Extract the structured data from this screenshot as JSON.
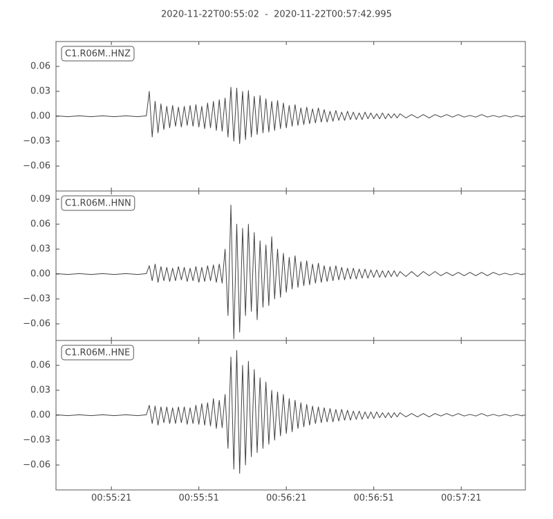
{
  "chart_data": {
    "type": "line",
    "title": "2020-11-22T00:55:02  -  2020-11-22T00:57:42.995",
    "x": [
      "00:55:02",
      "00:55:06",
      "00:55:10",
      "00:55:14",
      "00:55:18",
      "00:55:22",
      "00:55:26",
      "00:55:30",
      "00:55:33",
      "00:55:34",
      "00:55:35",
      "00:55:36",
      "00:55:37",
      "00:55:38",
      "00:55:39",
      "00:55:40",
      "00:55:41",
      "00:55:42",
      "00:55:43",
      "00:55:44",
      "00:55:45",
      "00:55:46",
      "00:55:47",
      "00:55:48",
      "00:55:49",
      "00:55:50",
      "00:55:51",
      "00:55:52",
      "00:55:53",
      "00:55:54",
      "00:55:55",
      "00:55:56",
      "00:55:57",
      "00:55:58",
      "00:55:59",
      "00:56:00",
      "00:56:01",
      "00:56:02",
      "00:56:03",
      "00:56:04",
      "00:56:05",
      "00:56:06",
      "00:56:07",
      "00:56:08",
      "00:56:09",
      "00:56:10",
      "00:56:11",
      "00:56:12",
      "00:56:13",
      "00:56:14",
      "00:56:15",
      "00:56:16",
      "00:56:17",
      "00:56:18",
      "00:56:19",
      "00:56:20",
      "00:56:21",
      "00:56:22",
      "00:56:23",
      "00:56:24",
      "00:56:25",
      "00:56:26",
      "00:56:27",
      "00:56:28",
      "00:56:29",
      "00:56:30",
      "00:56:31",
      "00:56:32",
      "00:56:33",
      "00:56:34",
      "00:56:35",
      "00:56:36",
      "00:56:37",
      "00:56:38",
      "00:56:39",
      "00:56:40",
      "00:56:41",
      "00:56:42",
      "00:56:43",
      "00:56:44",
      "00:56:45",
      "00:56:46",
      "00:56:47",
      "00:56:48",
      "00:56:49",
      "00:56:50",
      "00:56:51",
      "00:56:52",
      "00:56:53",
      "00:56:54",
      "00:56:55",
      "00:56:56",
      "00:56:57",
      "00:56:58",
      "00:56:59",
      "00:57:00",
      "00:57:02",
      "00:57:04",
      "00:57:06",
      "00:57:08",
      "00:57:10",
      "00:57:12",
      "00:57:14",
      "00:57:16",
      "00:57:18",
      "00:57:20",
      "00:57:22",
      "00:57:24",
      "00:57:26",
      "00:57:28",
      "00:57:30",
      "00:57:32",
      "00:57:34",
      "00:57:36",
      "00:57:38",
      "00:57:40",
      "00:57:42"
    ],
    "xlim": [
      "00:55:02",
      "00:57:42.995"
    ],
    "xticks": [
      "00:55:21",
      "00:55:51",
      "00:56:21",
      "00:56:51",
      "00:57:21"
    ],
    "series": [
      {
        "name": "C1.R06M..HNZ",
        "color": "#404040",
        "ylim": [
          -0.09,
          0.09
        ],
        "yticks": [
          {
            "value": -0.06,
            "label": "−0.06"
          },
          {
            "value": -0.03,
            "label": "−0.03"
          },
          {
            "value": 0,
            "label": "0.00"
          },
          0.03,
          0.06
        ],
        "values": [
          0.0005,
          -0.0005,
          0.0005,
          -0.0005,
          0.0005,
          -0.0005,
          0.0005,
          -0.0005,
          0.0005,
          0.03,
          -0.025,
          0.018,
          -0.02,
          0.015,
          -0.016,
          0.012,
          -0.014,
          0.013,
          -0.012,
          0.011,
          -0.013,
          0.012,
          -0.011,
          0.013,
          -0.012,
          0.014,
          -0.013,
          0.012,
          -0.015,
          0.016,
          -0.014,
          0.018,
          -0.017,
          0.02,
          -0.018,
          0.022,
          -0.025,
          0.035,
          -0.03,
          0.034,
          -0.033,
          0.03,
          -0.028,
          0.031,
          -0.025,
          0.024,
          -0.022,
          0.025,
          -0.02,
          0.021,
          -0.019,
          0.018,
          -0.017,
          0.019,
          -0.015,
          0.016,
          -0.014,
          0.013,
          -0.012,
          0.014,
          -0.011,
          0.01,
          -0.01,
          0.011,
          -0.009,
          0.009,
          -0.008,
          0.01,
          -0.007,
          0.008,
          -0.007,
          0.006,
          -0.006,
          0.007,
          -0.005,
          0.005,
          -0.005,
          0.006,
          -0.004,
          0.005,
          -0.004,
          0.004,
          -0.004,
          0.005,
          -0.003,
          0.004,
          -0.003,
          0.003,
          -0.003,
          0.004,
          -0.003,
          0.003,
          -0.002,
          0.003,
          -0.002,
          0.003,
          -0.002,
          0.002,
          -0.002,
          0.002,
          -0.002,
          0.002,
          -0.001,
          0.002,
          -0.001,
          0.002,
          -0.001,
          0.001,
          -0.001,
          0.002,
          -0.001,
          0.001,
          -0.001,
          0.001,
          -0.001,
          0.001,
          -0.001
        ]
      },
      {
        "name": "C1.R06M..HNN",
        "color": "#404040",
        "ylim": [
          -0.08,
          0.1
        ],
        "yticks": [
          {
            "value": -0.06,
            "label": "−0.06"
          },
          {
            "value": -0.03,
            "label": "−0.03"
          },
          {
            "value": 0,
            "label": "0.00"
          },
          0.03,
          0.06,
          0.09
        ],
        "values": [
          0.0005,
          -0.0005,
          0.0005,
          -0.0005,
          0.0005,
          -0.0005,
          0.0005,
          -0.0005,
          0.0005,
          0.01,
          -0.008,
          0.012,
          -0.01,
          0.009,
          -0.008,
          0.008,
          -0.009,
          0.007,
          -0.008,
          0.009,
          -0.007,
          0.008,
          -0.009,
          0.007,
          -0.008,
          0.009,
          -0.01,
          0.008,
          -0.009,
          0.01,
          -0.008,
          0.011,
          -0.01,
          0.012,
          -0.011,
          0.03,
          -0.05,
          0.083,
          -0.078,
          0.06,
          -0.07,
          0.055,
          -0.05,
          0.06,
          -0.045,
          0.05,
          -0.055,
          0.04,
          -0.04,
          0.035,
          -0.038,
          0.045,
          -0.03,
          0.03,
          -0.028,
          0.025,
          -0.022,
          0.02,
          -0.018,
          0.022,
          -0.016,
          0.015,
          -0.014,
          0.016,
          -0.013,
          0.012,
          -0.011,
          0.013,
          -0.01,
          0.01,
          -0.009,
          0.009,
          -0.008,
          0.01,
          -0.007,
          0.008,
          -0.007,
          0.007,
          -0.006,
          0.007,
          -0.006,
          0.006,
          -0.005,
          0.006,
          -0.005,
          0.005,
          -0.004,
          0.005,
          -0.004,
          0.004,
          -0.004,
          0.004,
          -0.003,
          0.004,
          -0.003,
          0.003,
          -0.003,
          0.003,
          -0.003,
          0.003,
          -0.002,
          0.003,
          -0.002,
          0.002,
          -0.002,
          0.002,
          -0.002,
          0.002,
          -0.002,
          0.002,
          -0.002,
          0.002,
          -0.001,
          0.001,
          -0.001,
          0.001,
          -0.001
        ]
      },
      {
        "name": "C1.R06M..HNE",
        "color": "#404040",
        "ylim": [
          -0.09,
          0.09
        ],
        "yticks": [
          {
            "value": -0.06,
            "label": "−0.06"
          },
          {
            "value": -0.03,
            "label": "−0.03"
          },
          {
            "value": 0,
            "label": "0.00"
          },
          0.03,
          0.06
        ],
        "values": [
          0.0005,
          -0.0005,
          0.0005,
          -0.0005,
          0.0005,
          -0.0005,
          0.0005,
          -0.0005,
          0.0005,
          0.012,
          -0.01,
          0.011,
          -0.012,
          0.01,
          -0.009,
          0.01,
          -0.01,
          0.009,
          -0.01,
          0.01,
          -0.009,
          0.01,
          -0.011,
          0.009,
          -0.01,
          0.012,
          -0.011,
          0.014,
          -0.012,
          0.015,
          -0.013,
          0.02,
          -0.016,
          0.018,
          -0.015,
          0.025,
          -0.04,
          0.07,
          -0.065,
          0.078,
          -0.07,
          0.06,
          -0.06,
          0.065,
          -0.05,
          0.055,
          -0.045,
          0.045,
          -0.04,
          0.04,
          -0.035,
          0.03,
          -0.03,
          0.028,
          -0.025,
          0.025,
          -0.022,
          0.02,
          -0.02,
          0.018,
          -0.016,
          0.015,
          -0.014,
          0.013,
          -0.012,
          0.011,
          -0.01,
          0.01,
          -0.009,
          0.009,
          -0.008,
          0.008,
          -0.008,
          0.007,
          -0.007,
          0.007,
          -0.006,
          0.006,
          -0.006,
          0.005,
          -0.005,
          0.005,
          -0.005,
          0.004,
          -0.004,
          0.004,
          -0.004,
          0.004,
          -0.003,
          0.003,
          -0.003,
          0.003,
          -0.003,
          0.003,
          -0.002,
          0.003,
          -0.002,
          0.002,
          -0.002,
          0.002,
          -0.002,
          0.002,
          -0.001,
          0.002,
          -0.001,
          0.002,
          -0.001,
          0.001,
          -0.001,
          0.002,
          -0.001,
          0.001,
          -0.001,
          0.001,
          -0.001,
          0.001,
          -0.001
        ]
      }
    ]
  }
}
